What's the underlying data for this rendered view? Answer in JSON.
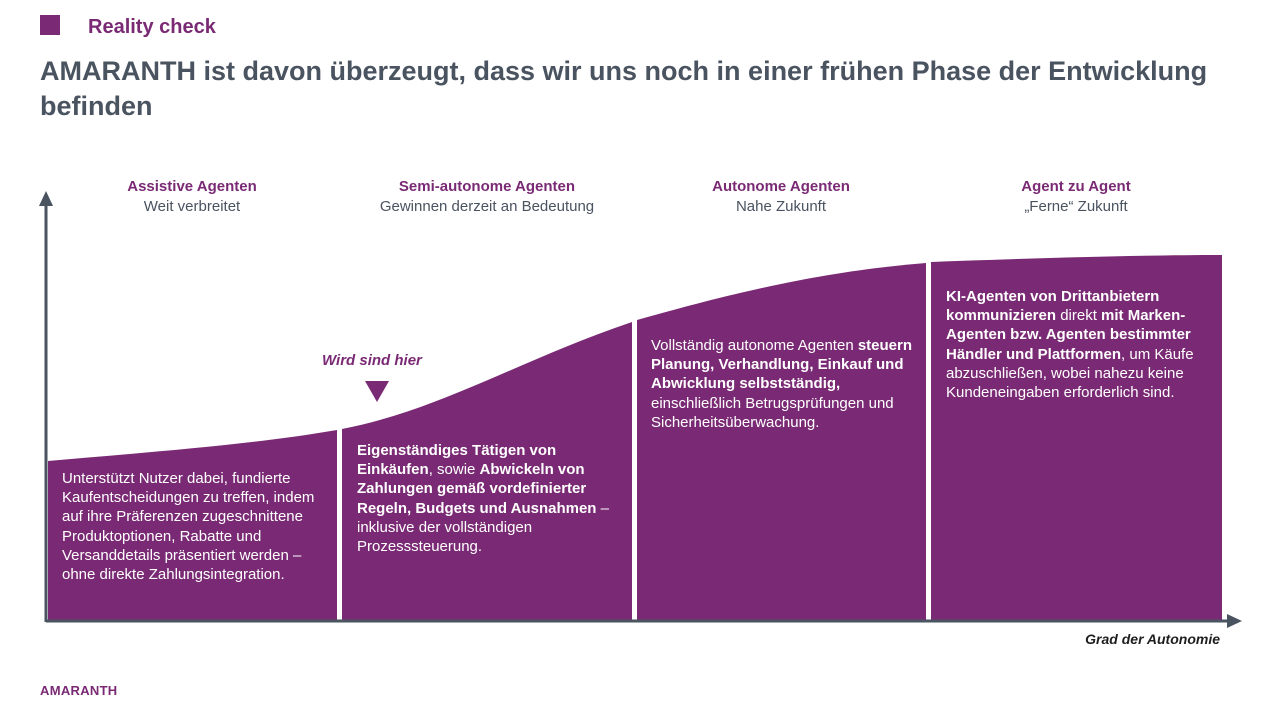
{
  "header": {
    "section_label": "Reality check",
    "title": "AMARANTH ist davon überzeugt, dass wir uns noch in einer frühen Phase der Entwicklung befinden"
  },
  "stages": [
    {
      "name": "Assistive Agenten",
      "subtitle": "Weit verbreitet",
      "description_html": "Unterstützt Nutzer dabei, fundierte Kaufentscheidungen zu treffen, indem auf ihre Präferenzen zugeschnittene Produktoptionen, Rabatte und Versanddetails präsentiert werden – ohne direkte Zahlungsintegration."
    },
    {
      "name": "Semi-autonome Agenten",
      "subtitle": "Gewinnen derzeit an Bedeutung",
      "description_html": "<b>Eigenständiges Tätigen von Einkäufen</b>, sowie <b>Abwickeln von Zahlungen gemäß vordefinierter Regeln, Budgets und Ausnahmen</b> – inklusive der vollständigen Prozesssteuerung."
    },
    {
      "name": "Autonome Agenten",
      "subtitle": "Nahe Zukunft",
      "description_html": "Vollständig autonome Agenten <b>steuern Planung, Verhandlung, Einkauf und Abwicklung selbstständig,</b> einschließlich Betrugsprüfungen und Sicherheitsüberwachung."
    },
    {
      "name": "Agent zu Agent",
      "subtitle": "„Ferne“ Zukunft",
      "description_html": "<b>KI-Agenten von Drittanbietern kommunizieren</b> direkt <b>mit Marken-Agenten bzw. Agenten bestimmter Händler und Plattformen</b>, um Käufe abzuschließen, wobei nahezu keine Kundeneingaben erforderlich sind."
    }
  ],
  "marker": {
    "label": "Wird sind hier"
  },
  "axis": {
    "x_label": "Grad der Autonomie"
  },
  "footer": {
    "brand": "AMARANTH"
  },
  "colors": {
    "accent": "#7a2a74",
    "title": "#4a5360",
    "axis": "#4a5360"
  }
}
